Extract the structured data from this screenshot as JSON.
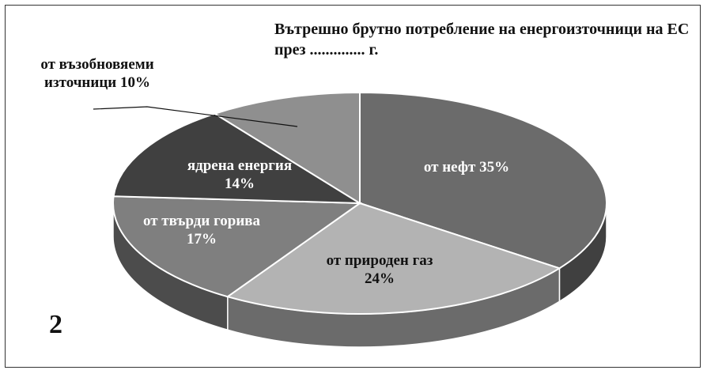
{
  "chart_data": {
    "type": "pie3d",
    "title": "Вътрешно брутно потребление на енергоизточници на ЕС през .............. г.",
    "annotation": "2",
    "categories": [
      "от нефт",
      "от природен газ",
      "от твърди горива",
      "ядрена енергия",
      "от възобновяеми източници"
    ],
    "values": [
      35,
      24,
      17,
      14,
      10
    ],
    "value_labels": [
      "35%",
      "24%",
      "17%",
      "14%",
      "10%"
    ],
    "colors": [
      "#6b6b6b",
      "#b3b3b3",
      "#7f7f7f",
      "#404040",
      "#8f8f8f"
    ]
  }
}
